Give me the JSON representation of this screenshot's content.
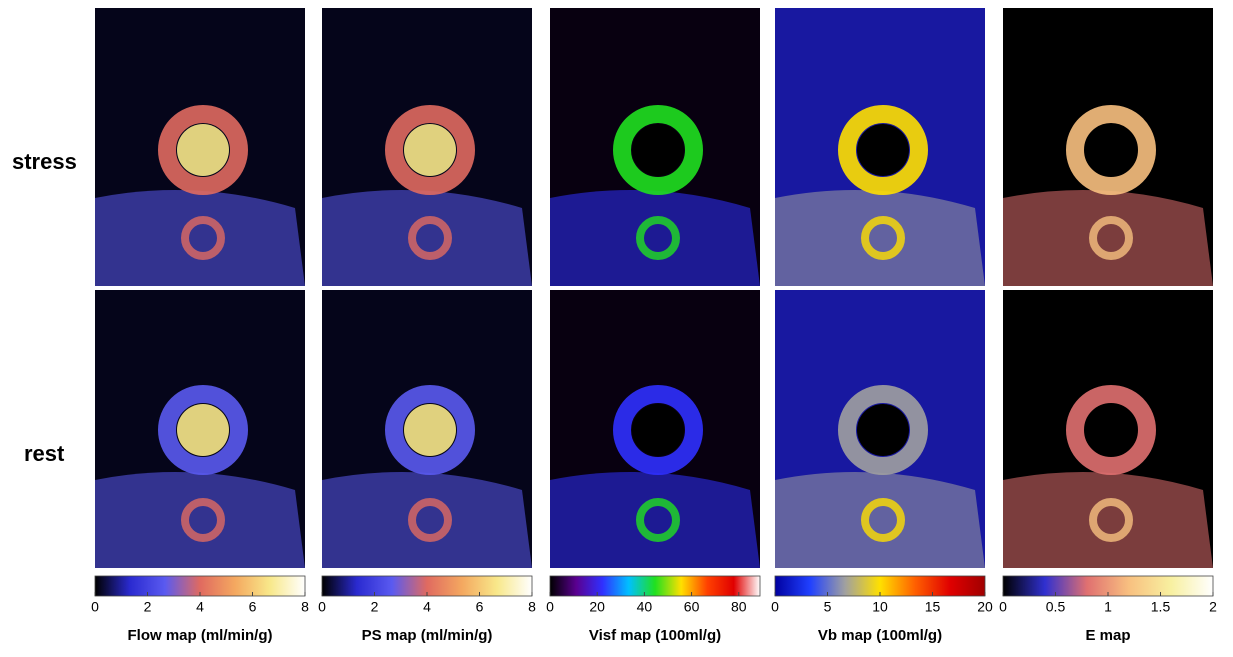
{
  "rows": [
    "stress",
    "rest"
  ],
  "maps": [
    {
      "title": "Flow map (ml/min/g)",
      "lim": [
        0,
        8
      ],
      "ticks": [
        0,
        2,
        4,
        6,
        8
      ],
      "colors": [
        "#000000",
        "#2a2ad0",
        "#5a5af0",
        "#e06a60",
        "#f4a860",
        "#f8e88a",
        "#ffffff"
      ]
    },
    {
      "title": "PS map (ml/min/g)",
      "lim": [
        0,
        8
      ],
      "ticks": [
        0,
        2,
        4,
        6,
        8
      ],
      "colors": [
        "#000000",
        "#2a2ad0",
        "#5a5af0",
        "#e06a60",
        "#f4a860",
        "#f8e88a",
        "#ffffff"
      ]
    },
    {
      "title": "Visf map (100ml/g)",
      "lim": [
        0,
        89
      ],
      "ticks": [
        0,
        20,
        40,
        60,
        80
      ],
      "colors": [
        "#000000",
        "#5a0090",
        "#3030ff",
        "#00c0ff",
        "#20e020",
        "#ffe000",
        "#ff4000",
        "#e00000",
        "#ffffff"
      ]
    },
    {
      "title": "Vb map (100ml/g)",
      "lim": [
        0,
        20
      ],
      "ticks": [
        0,
        5,
        10,
        15,
        20
      ],
      "colors": [
        "#0000a0",
        "#2040ff",
        "#a0a0a0",
        "#ffe000",
        "#ff6000",
        "#e00000",
        "#a00000"
      ]
    },
    {
      "title": "E map",
      "lim": [
        0,
        2
      ],
      "ticks": [
        0,
        0.5,
        1,
        1.5,
        2
      ],
      "colors": [
        "#000000",
        "#3030d0",
        "#e07070",
        "#f8c080",
        "#f8f0a0",
        "#ffffff"
      ]
    }
  ]
}
